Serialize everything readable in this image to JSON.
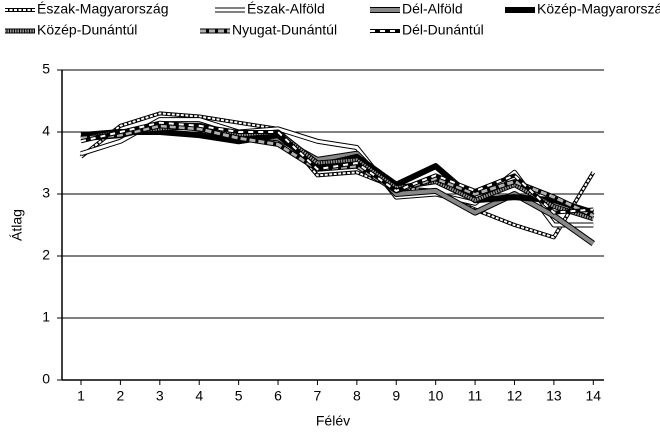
{
  "chart_data": {
    "type": "line",
    "xlabel": "Félév",
    "ylabel": "Átlag",
    "categories": [
      "1",
      "2",
      "3",
      "4",
      "5",
      "6",
      "7",
      "8",
      "9",
      "10",
      "11",
      "12",
      "13",
      "14"
    ],
    "ylim": [
      0,
      5
    ],
    "yticks": [
      0,
      1,
      2,
      3,
      4,
      5
    ],
    "grid": true,
    "legend": "top",
    "series": [
      {
        "name": "Észak-Magyarország",
        "color": "#ffffff",
        "values": [
          3.6,
          4.1,
          4.3,
          4.25,
          4.15,
          4.05,
          3.3,
          3.35,
          3.1,
          3.05,
          2.75,
          2.5,
          2.3,
          3.35
        ]
      },
      {
        "name": "Észak-Alföld",
        "color": "#ffffff",
        "values": [
          3.65,
          3.85,
          4.2,
          4.2,
          4.0,
          4.05,
          3.85,
          3.75,
          2.95,
          3.0,
          2.85,
          3.35,
          2.5,
          2.5
        ]
      },
      {
        "name": "Dél-Alföld",
        "color": "#888888",
        "values": [
          3.9,
          3.95,
          4.1,
          4.1,
          3.95,
          3.9,
          3.55,
          3.65,
          3.0,
          3.05,
          2.7,
          3.0,
          2.65,
          2.2
        ]
      },
      {
        "name": "Közép-Magyarország",
        "color": "#000000",
        "values": [
          3.95,
          4.0,
          4.0,
          3.95,
          3.85,
          3.95,
          3.45,
          3.6,
          3.15,
          3.45,
          2.9,
          2.95,
          2.9,
          2.7
        ]
      },
      {
        "name": "Közép-Dunántúl",
        "color": "#999999",
        "values": [
          3.9,
          4.0,
          4.05,
          4.1,
          3.95,
          4.0,
          3.5,
          3.55,
          3.1,
          3.2,
          2.9,
          3.15,
          2.8,
          2.6
        ]
      },
      {
        "name": "Nyugat-Dunántúl",
        "color": "#b0b0b0",
        "values": [
          3.9,
          3.95,
          4.1,
          4.05,
          3.9,
          3.8,
          3.4,
          3.45,
          3.05,
          3.25,
          3.0,
          3.2,
          2.95,
          2.65
        ]
      },
      {
        "name": "Dél-Dunántúl",
        "color": "#ffffff",
        "values": [
          3.85,
          4.0,
          4.15,
          4.1,
          4.0,
          4.0,
          3.4,
          3.5,
          3.05,
          3.3,
          3.05,
          3.3,
          2.7,
          2.75
        ]
      }
    ]
  }
}
